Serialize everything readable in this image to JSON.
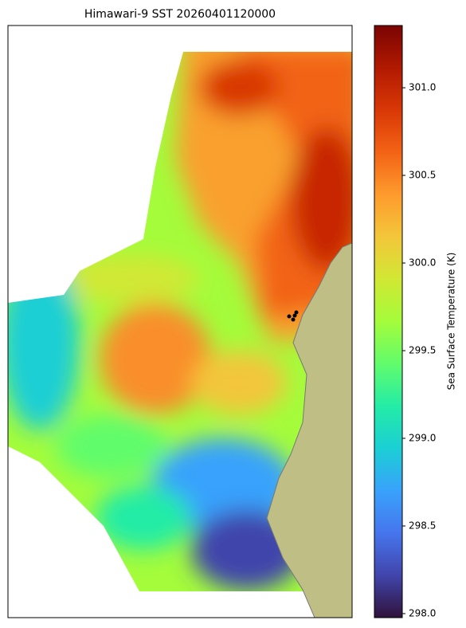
{
  "chart_data": {
    "type": "map",
    "title": "Himawari-9 SST 20260401120000",
    "colorbar_label": "Sea Surface Temperature (K)",
    "clim": [
      297.977,
      301.355
    ],
    "cticks": [
      {
        "value": 298,
        "label": "298.0"
      },
      {
        "value": 298.5,
        "label": "298.5"
      },
      {
        "value": 299,
        "label": "299.0"
      },
      {
        "value": 299.5,
        "label": "299.5"
      },
      {
        "value": 300,
        "label": "300.0"
      },
      {
        "value": 300.5,
        "label": "300.5"
      },
      {
        "value": 301,
        "label": "301.0"
      }
    ],
    "colormap": [
      "#30123b",
      "#4145ab",
      "#4675ed",
      "#39a2fc",
      "#1bcfd4",
      "#24eca6",
      "#61fc6c",
      "#a4fc3b",
      "#d1e834",
      "#f3c63a",
      "#fe9b2d",
      "#f36315",
      "#d93806",
      "#b11901",
      "#7a0402"
    ]
  }
}
